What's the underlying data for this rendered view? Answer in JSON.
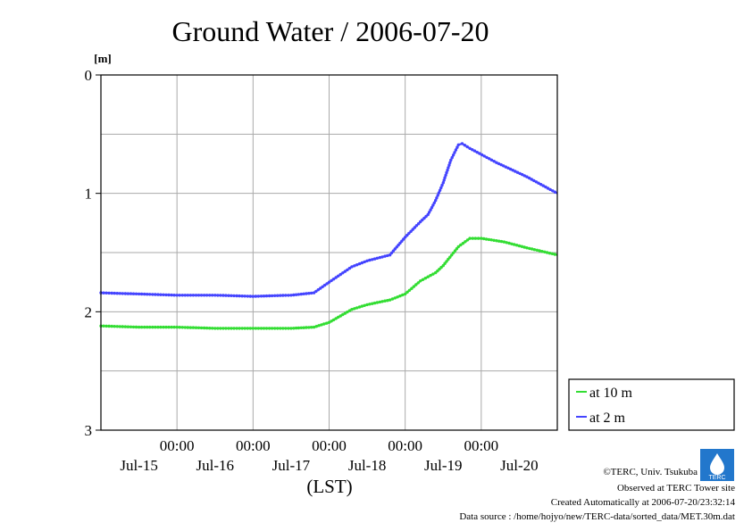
{
  "chart_data": {
    "type": "line",
    "title": "Ground Water / 2006-07-20",
    "ylabel": "[m]",
    "xlabel": "(LST)",
    "ylim": [
      3,
      0
    ],
    "y_ticks": [
      "0",
      "1",
      "2",
      "3"
    ],
    "x_time_ticks": [
      "00:00",
      "00:00",
      "00:00",
      "00:00",
      "00:00"
    ],
    "x_date_labels": [
      "Jul-15",
      "Jul-16",
      "Jul-17",
      "Jul-18",
      "Jul-19",
      "Jul-20"
    ],
    "grid": true,
    "legend_position": "bottom-right",
    "x_unit": "days",
    "x_range": [
      -3,
      3
    ],
    "series": [
      {
        "name": "at 10 m",
        "color": "#33dd33",
        "x": [
          -3.0,
          -2.5,
          -2.0,
          -1.5,
          -1.0,
          -0.5,
          -0.2,
          0.0,
          0.3,
          0.5,
          0.8,
          1.0,
          1.2,
          1.4,
          1.5,
          1.7,
          1.85,
          2.0,
          2.3,
          2.6,
          3.0
        ],
        "y": [
          2.12,
          2.13,
          2.13,
          2.14,
          2.14,
          2.14,
          2.13,
          2.09,
          1.98,
          1.94,
          1.9,
          1.85,
          1.74,
          1.67,
          1.61,
          1.45,
          1.38,
          1.38,
          1.41,
          1.46,
          1.52
        ]
      },
      {
        "name": "at 2 m",
        "color": "#4444ff",
        "x": [
          -3.0,
          -2.5,
          -2.0,
          -1.5,
          -1.0,
          -0.5,
          -0.2,
          0.0,
          0.3,
          0.5,
          0.8,
          1.0,
          1.2,
          1.3,
          1.4,
          1.5,
          1.6,
          1.7,
          1.75,
          1.85,
          2.2,
          2.6,
          3.0
        ],
        "y": [
          1.84,
          1.85,
          1.86,
          1.86,
          1.87,
          1.86,
          1.84,
          1.75,
          1.62,
          1.57,
          1.52,
          1.37,
          1.24,
          1.18,
          1.06,
          0.91,
          0.72,
          0.59,
          0.58,
          0.62,
          0.74,
          0.86,
          1.0
        ]
      }
    ]
  },
  "credits": {
    "copyright": "©TERC, Univ. Tsukuba",
    "observed": "Observed at TERC Tower site",
    "created": "Created Automatically at 2006-07-20/23:32:14",
    "source": "Data source : /home/hojyo/new/TERC-data/sorted_data/MET.30m.dat",
    "logo_text": "TERC"
  }
}
